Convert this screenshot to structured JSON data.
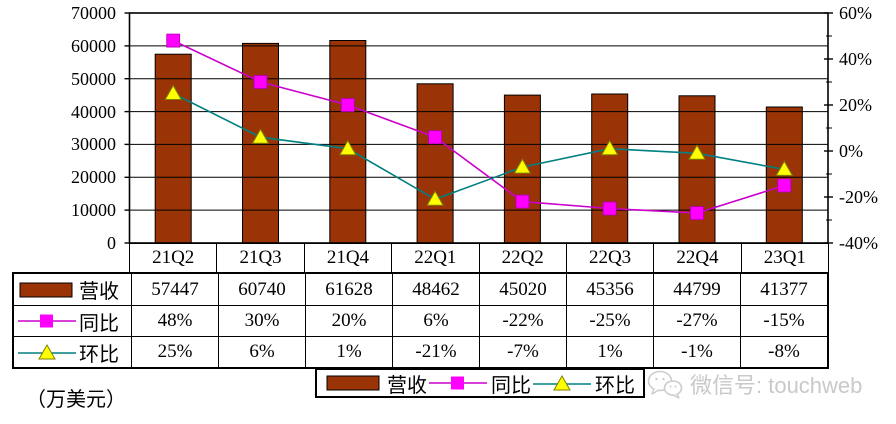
{
  "chart_data": {
    "type": "bar+line combo",
    "categories": [
      "21Q2",
      "21Q3",
      "21Q4",
      "22Q1",
      "22Q2",
      "22Q3",
      "22Q4",
      "23Q1"
    ],
    "series": [
      {
        "name": "营收",
        "type": "bar",
        "axis": "left",
        "color": "#9a3407",
        "values": [
          57447,
          60740,
          61628,
          48462,
          45020,
          45356,
          44799,
          41377
        ]
      },
      {
        "name": "同比",
        "type": "line",
        "axis": "right",
        "line_color": "#cc00cc",
        "marker": "square",
        "marker_color": "#ff00ff",
        "values": [
          48,
          30,
          20,
          6,
          -22,
          -25,
          -27,
          -15
        ]
      },
      {
        "name": "环比",
        "type": "line",
        "axis": "right",
        "line_color": "#008080",
        "marker": "triangle",
        "marker_color": "#ffff00",
        "values": [
          25,
          6,
          1,
          -21,
          -7,
          1,
          -1,
          -8
        ]
      }
    ],
    "left_axis": {
      "min": 0,
      "max": 70000,
      "step": 10000,
      "labels": [
        "0",
        "10000",
        "20000",
        "30000",
        "40000",
        "50000",
        "60000",
        "70000"
      ]
    },
    "right_axis": {
      "min": -40,
      "max": 60,
      "major_step": 20,
      "minor_step": 10,
      "labels": [
        "-40%",
        "-20%",
        "0%",
        "20%",
        "40%",
        "60%"
      ]
    },
    "grid": true,
    "legend_position": "bottom"
  },
  "table": {
    "rows": [
      {
        "label": "营收",
        "key": "bar",
        "cells": [
          "57447",
          "60740",
          "61628",
          "48462",
          "45020",
          "45356",
          "44799",
          "41377"
        ]
      },
      {
        "label": "同比",
        "key": "square",
        "cells": [
          "48%",
          "30%",
          "20%",
          "6%",
          "-22%",
          "-25%",
          "-27%",
          "-15%"
        ]
      },
      {
        "label": "环比",
        "key": "triangle",
        "cells": [
          "25%",
          "6%",
          "1%",
          "-21%",
          "-7%",
          "1%",
          "-1%",
          "-8%"
        ]
      }
    ]
  },
  "legend": {
    "items": [
      {
        "label": "营收",
        "key": "bar"
      },
      {
        "label": "同比",
        "key": "square"
      },
      {
        "label": "环比",
        "key": "triangle"
      }
    ]
  },
  "footnote": "（万美元）",
  "watermark": {
    "icon": "wechat-icon",
    "text": "微信号: touchweb"
  }
}
